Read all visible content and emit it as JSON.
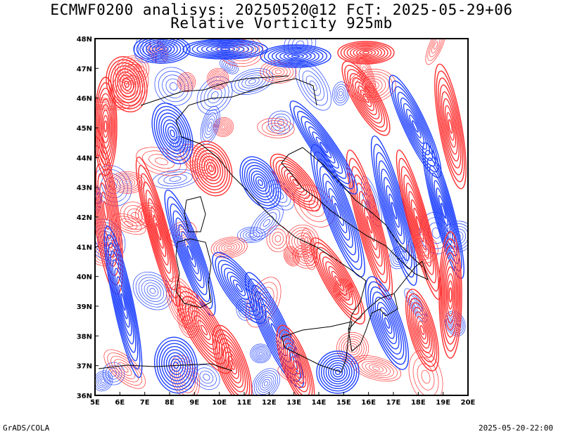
{
  "title_line1": "ECMWF0200 analisys: 20250520@12 FcT: 2025-05-29+06",
  "title_line2": "Relative Vorticity 925mb",
  "footer_left": "GrADS/COLA",
  "footer_right": "2025-05-20-22:00",
  "map": {
    "lon_labels": [
      "5E",
      "6E",
      "7E",
      "8E",
      "9E",
      "10E",
      "11E",
      "12E",
      "13E",
      "14E",
      "15E",
      "16E",
      "17E",
      "18E",
      "19E",
      "20E"
    ],
    "lat_labels": [
      "48N",
      "47N",
      "46N",
      "45N",
      "44N",
      "43N",
      "42N",
      "41N",
      "40N",
      "39N",
      "38N",
      "37N",
      "36N"
    ],
    "colors": {
      "positive": "#ff3333",
      "negative": "#2244ff",
      "coast": "#000000"
    }
  }
}
